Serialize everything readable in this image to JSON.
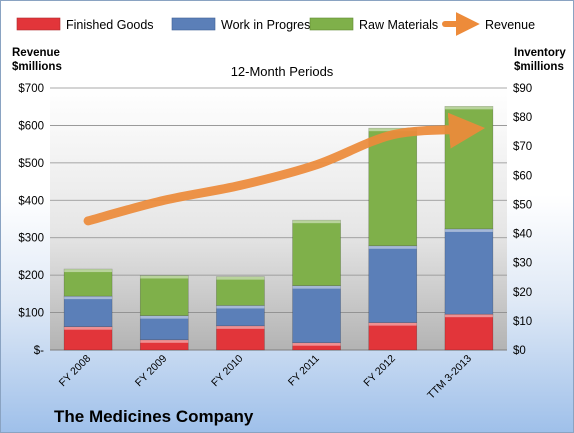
{
  "chart_data": {
    "type": "bar",
    "subtitle": "12-Month Periods",
    "footer_title": "The Medicines Company",
    "left_axis_title_line1": "Revenue",
    "left_axis_title_line2": "$millions",
    "right_axis_title_line1": "Inventory",
    "right_axis_title_line2": "$millions",
    "left_axis_ticks": [
      "$-",
      "$100",
      "$200",
      "$300",
      "$400",
      "$500",
      "$600",
      "$700"
    ],
    "right_axis_ticks": [
      "$0",
      "$10",
      "$20",
      "$30",
      "$40",
      "$50",
      "$60",
      "$70",
      "$80",
      "$90"
    ],
    "left_ylim": [
      0,
      700
    ],
    "right_ylim": [
      0,
      90
    ],
    "categories": [
      "FY 2008",
      "FY 2009",
      "FY 2010",
      "FY 2011",
      "FY 2012",
      "TTM 3-2013"
    ],
    "series": [
      {
        "name": "Finished Goods",
        "axis": "right",
        "color": "#e2353a",
        "values": [
          8,
          3.5,
          8.3,
          2.5,
          9.4,
          12.3
        ]
      },
      {
        "name": "Work in Progress",
        "axis": "right",
        "color": "#5b7fb8",
        "values": [
          10.5,
          8.3,
          7,
          19.6,
          26.4,
          29.3
        ]
      },
      {
        "name": "Raw Materials",
        "axis": "right",
        "color": "#7fb04a",
        "values": [
          9.3,
          13.8,
          9.9,
          22.5,
          40.4,
          42.1
        ]
      },
      {
        "name": "Revenue",
        "axis": "left",
        "color": "#ed8b3a",
        "type": "line",
        "values": [
          345,
          400,
          440,
          495,
          575,
          590
        ]
      }
    ],
    "grid": true,
    "legend_position": "top"
  }
}
